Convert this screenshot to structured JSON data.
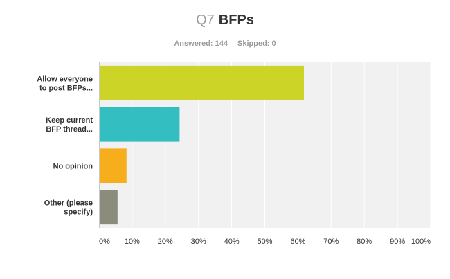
{
  "header": {
    "question_number": "Q7",
    "question_title": "BFPs",
    "answered_label": "Answered: 144",
    "skipped_label": "Skipped: 0"
  },
  "chart_data": {
    "type": "bar",
    "orientation": "horizontal",
    "categories": [
      [
        "Allow everyone",
        "to post BFPs..."
      ],
      [
        "Keep current",
        "BFP thread..."
      ],
      [
        "No opinion"
      ],
      [
        "Other (please",
        "specify)"
      ]
    ],
    "values": [
      61.8,
      24.3,
      8.3,
      5.6
    ],
    "colors": [
      "#cdd428",
      "#33bfc1",
      "#f7ae1d",
      "#8b8c7c"
    ],
    "xlim": [
      0,
      100
    ],
    "ticks": [
      "0%",
      "10%",
      "20%",
      "30%",
      "40%",
      "50%",
      "60%",
      "70%",
      "80%",
      "90%",
      "100%"
    ],
    "grid": true,
    "plot_background": "#f1f1f1"
  }
}
